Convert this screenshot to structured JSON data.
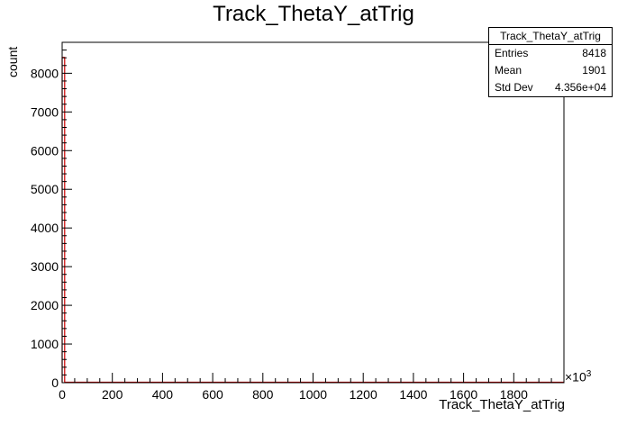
{
  "chart_data": {
    "type": "bar",
    "title": "Track_ThetaY_atTrig",
    "xlabel": "Track_ThetaY_atTrig",
    "ylabel": "count",
    "x_exponent": "×10",
    "x_exponent_power": "3",
    "xlim": [
      0,
      2000
    ],
    "ylim": [
      0,
      8800
    ],
    "x_ticks": [
      0,
      200,
      400,
      600,
      800,
      1000,
      1200,
      1400,
      1600,
      1800
    ],
    "y_ticks": [
      0,
      1000,
      2000,
      3000,
      4000,
      5000,
      6000,
      7000,
      8000
    ],
    "bins": [
      {
        "x0": 0,
        "x1": 10,
        "value": 8410
      }
    ],
    "line_color": "#cc0000",
    "grid": false,
    "legend": "top-right"
  },
  "stats": {
    "title": "Track_ThetaY_atTrig",
    "entries_label": "Entries",
    "entries_value": "8418",
    "mean_label": "Mean",
    "mean_value": "1901",
    "stddev_label": "Std Dev",
    "stddev_value": "4.356e+04"
  }
}
